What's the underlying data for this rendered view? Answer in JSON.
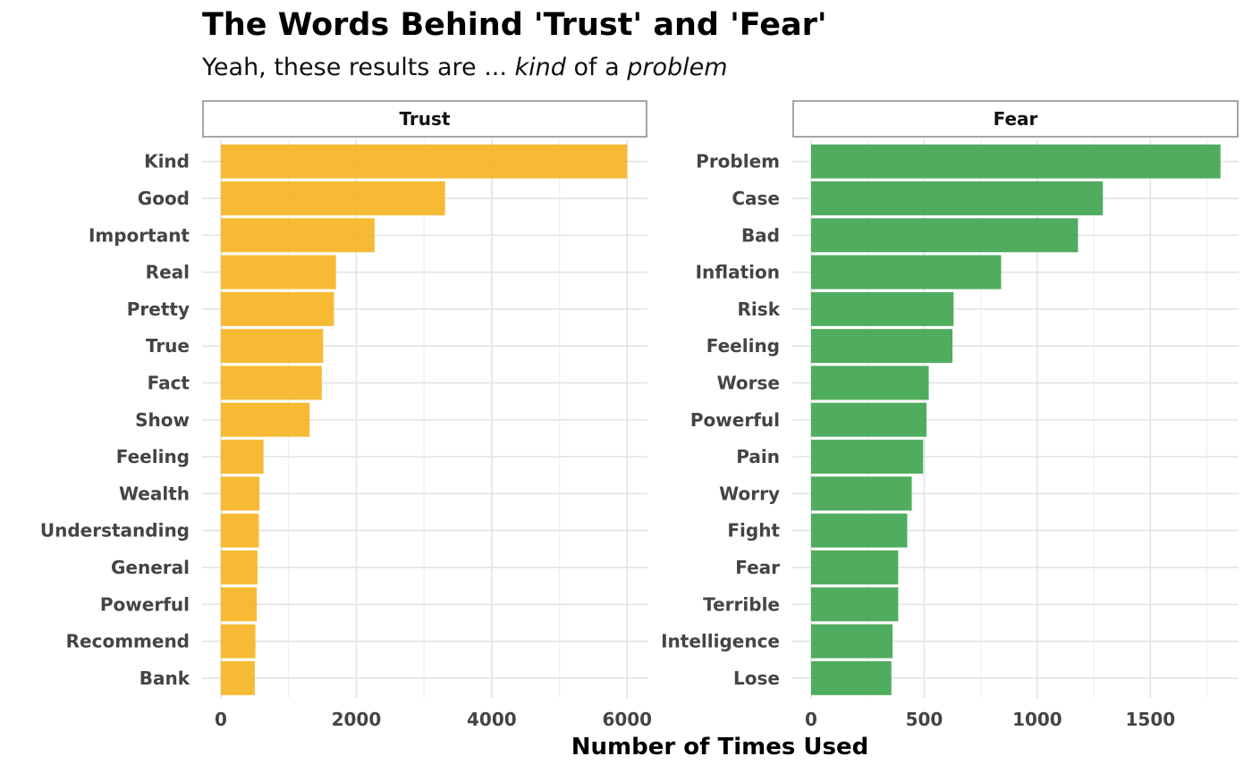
{
  "chart_data": {
    "type": "bar",
    "orientation": "horizontal",
    "title": "The Words Behind 'Trust' and 'Fear'",
    "subtitle": {
      "prefix": "Yeah, these results are ... ",
      "word1": "kind",
      "middle": " of a ",
      "word2": "problem"
    },
    "xlabel": "Number of Times Used",
    "grid": true,
    "legend": "none",
    "panels": [
      {
        "name": "Trust",
        "color": "#F6B21F",
        "xlim": [
          0,
          6300
        ],
        "xticks": [
          0,
          2000,
          4000,
          6000
        ],
        "categories": [
          "Kind",
          "Good",
          "Important",
          "Real",
          "Pretty",
          "True",
          "Fact",
          "Show",
          "Feeling",
          "Wealth",
          "Understanding",
          "General",
          "Powerful",
          "Recommend",
          "Bank"
        ],
        "values": [
          6000,
          3310,
          2270,
          1700,
          1670,
          1510,
          1490,
          1310,
          630,
          570,
          560,
          540,
          530,
          510,
          500
        ]
      },
      {
        "name": "Fear",
        "color": "#3DA34E",
        "xlim": [
          0,
          1890
        ],
        "xticks": [
          0,
          500,
          1000,
          1500
        ],
        "categories": [
          "Problem",
          "Case",
          "Bad",
          "Inflation",
          "Risk",
          "Feeling",
          "Worse",
          "Powerful",
          "Pain",
          "Worry",
          "Fight",
          "Fear",
          "Terrible",
          "Intelligence",
          "Lose"
        ],
        "values": [
          1810,
          1290,
          1180,
          840,
          630,
          625,
          520,
          510,
          495,
          445,
          425,
          385,
          385,
          360,
          355
        ]
      }
    ]
  }
}
